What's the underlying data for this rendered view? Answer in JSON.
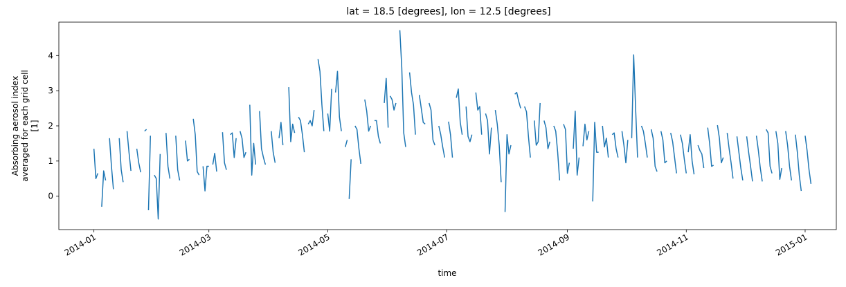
{
  "chart_data": {
    "type": "line",
    "title": "lat = 18.5 [degrees], lon = 12.5 [degrees]",
    "xlabel": "time",
    "ylabel_lines": [
      "Absorbing aerosol index",
      "averaged for each grid cell",
      "[1]"
    ],
    "color": "#1f77b4",
    "grid": false,
    "legend": "none",
    "xlim": [
      "2013-12-14",
      "2015-01-17"
    ],
    "ylim": [
      -0.95,
      4.95
    ],
    "x_ticks": [
      "2014-01-01",
      "2014-03-01",
      "2014-05-01",
      "2014-07-01",
      "2014-09-01",
      "2014-11-01",
      "2015-01-01"
    ],
    "x_tick_labels": [
      "2014-01",
      "2014-03",
      "2014-05",
      "2014-07",
      "2014-09",
      "2014-11",
      "2015-01"
    ],
    "y_ticks": [
      0,
      1,
      2,
      3,
      4
    ],
    "y_tick_labels": [
      "0",
      "1",
      "2",
      "3",
      "4"
    ],
    "segments": [
      [
        [
          "2014-01-01",
          1.35
        ],
        [
          "2014-01-02",
          0.5
        ],
        [
          "2014-01-03",
          0.65
        ]
      ],
      [
        [
          "2014-01-05",
          -0.3
        ],
        [
          "2014-01-06",
          0.72
        ],
        [
          "2014-01-07",
          0.45
        ]
      ],
      [
        [
          "2014-01-09",
          1.65
        ],
        [
          "2014-01-10",
          0.85
        ],
        [
          "2014-01-11",
          0.2
        ]
      ],
      [
        [
          "2014-01-14",
          1.65
        ],
        [
          "2014-01-15",
          0.75
        ],
        [
          "2014-01-16",
          0.4
        ]
      ],
      [
        [
          "2014-01-18",
          1.85
        ],
        [
          "2014-01-19",
          1.25
        ],
        [
          "2014-01-20",
          0.72
        ]
      ],
      [
        [
          "2014-01-23",
          1.35
        ],
        [
          "2014-01-24",
          0.95
        ],
        [
          "2014-01-25",
          0.68
        ]
      ],
      [
        [
          "2014-01-27",
          1.85
        ],
        [
          "2014-01-28",
          1.9
        ]
      ],
      [
        [
          "2014-01-29",
          -0.4
        ],
        [
          "2014-01-30",
          1.72
        ]
      ],
      [
        [
          "2014-02-01",
          0.6
        ],
        [
          "2014-02-02",
          0.5
        ],
        [
          "2014-02-03",
          -0.65
        ],
        [
          "2014-02-04",
          1.2
        ]
      ],
      [
        [
          "2014-02-07",
          1.8
        ],
        [
          "2014-02-08",
          0.85
        ],
        [
          "2014-02-09",
          0.5
        ]
      ],
      [
        [
          "2014-02-12",
          1.72
        ],
        [
          "2014-02-13",
          0.75
        ],
        [
          "2014-02-14",
          0.45
        ]
      ],
      [
        [
          "2014-02-17",
          1.58
        ],
        [
          "2014-02-18",
          1.0
        ],
        [
          "2014-02-19",
          1.05
        ]
      ],
      [
        [
          "2014-02-21",
          2.2
        ],
        [
          "2014-02-22",
          1.75
        ],
        [
          "2014-02-23",
          0.7
        ],
        [
          "2014-02-24",
          0.6
        ]
      ],
      [
        [
          "2014-02-26",
          0.85
        ],
        [
          "2014-02-27",
          0.15
        ],
        [
          "2014-02-28",
          0.85
        ],
        [
          "2014-03-01",
          0.85
        ]
      ],
      [
        [
          "2014-03-03",
          0.9
        ],
        [
          "2014-03-04",
          1.22
        ],
        [
          "2014-03-05",
          0.7
        ]
      ],
      [
        [
          "2014-03-08",
          1.82
        ],
        [
          "2014-03-09",
          0.95
        ],
        [
          "2014-03-10",
          0.75
        ]
      ],
      [
        [
          "2014-03-12",
          1.75
        ],
        [
          "2014-03-13",
          1.8
        ],
        [
          "2014-03-14",
          1.1
        ],
        [
          "2014-03-15",
          1.65
        ]
      ],
      [
        [
          "2014-03-17",
          1.85
        ],
        [
          "2014-03-18",
          1.65
        ],
        [
          "2014-03-19",
          1.1
        ],
        [
          "2014-03-20",
          1.25
        ]
      ],
      [
        [
          "2014-03-22",
          2.6
        ],
        [
          "2014-03-23",
          0.6
        ],
        [
          "2014-03-24",
          1.5
        ],
        [
          "2014-03-25",
          0.9
        ]
      ],
      [
        [
          "2014-03-27",
          2.42
        ],
        [
          "2014-03-28",
          1.35
        ],
        [
          "2014-03-29",
          1.1
        ],
        [
          "2014-03-30",
          0.9
        ]
      ],
      [
        [
          "2014-04-02",
          1.85
        ],
        [
          "2014-04-03",
          1.25
        ],
        [
          "2014-04-04",
          0.95
        ]
      ],
      [
        [
          "2014-04-06",
          1.65
        ],
        [
          "2014-04-07",
          2.1
        ],
        [
          "2014-04-08",
          1.45
        ]
      ],
      [
        [
          "2014-04-11",
          3.1
        ],
        [
          "2014-04-12",
          1.55
        ],
        [
          "2014-04-13",
          2.05
        ],
        [
          "2014-04-14",
          1.8
        ]
      ],
      [
        [
          "2014-04-16",
          2.25
        ],
        [
          "2014-04-17",
          2.15
        ],
        [
          "2014-04-18",
          1.75
        ],
        [
          "2014-04-19",
          1.25
        ]
      ],
      [
        [
          "2014-04-21",
          2.05
        ],
        [
          "2014-04-22",
          2.15
        ],
        [
          "2014-04-23",
          2.0
        ],
        [
          "2014-04-24",
          2.45
        ]
      ],
      [
        [
          "2014-04-26",
          3.9
        ],
        [
          "2014-04-27",
          3.55
        ],
        [
          "2014-04-28",
          2.6
        ],
        [
          "2014-04-29",
          1.85
        ]
      ],
      [
        [
          "2014-05-01",
          2.35
        ],
        [
          "2014-05-02",
          1.85
        ],
        [
          "2014-05-03",
          3.05
        ]
      ],
      [
        [
          "2014-05-05",
          2.95
        ],
        [
          "2014-05-06",
          3.55
        ],
        [
          "2014-05-07",
          2.25
        ],
        [
          "2014-05-08",
          1.85
        ]
      ],
      [
        [
          "2014-05-10",
          1.4
        ],
        [
          "2014-05-11",
          1.6
        ]
      ],
      [
        [
          "2014-05-12",
          -0.08
        ],
        [
          "2014-05-13",
          1.05
        ]
      ],
      [
        [
          "2014-05-15",
          2.0
        ],
        [
          "2014-05-16",
          1.9
        ],
        [
          "2014-05-17",
          1.35
        ],
        [
          "2014-05-18",
          0.92
        ]
      ],
      [
        [
          "2014-05-20",
          2.75
        ],
        [
          "2014-05-21",
          2.42
        ],
        [
          "2014-05-22",
          1.85
        ],
        [
          "2014-05-23",
          2.0
        ]
      ],
      [
        [
          "2014-05-25",
          2.15
        ],
        [
          "2014-05-26",
          2.15
        ],
        [
          "2014-05-27",
          1.7
        ],
        [
          "2014-05-28",
          1.5
        ]
      ],
      [
        [
          "2014-05-30",
          2.65
        ],
        [
          "2014-05-31",
          3.35
        ],
        [
          "2014-06-01",
          1.95
        ]
      ],
      [
        [
          "2014-06-02",
          2.85
        ],
        [
          "2014-06-03",
          2.75
        ],
        [
          "2014-06-04",
          2.45
        ],
        [
          "2014-06-05",
          2.65
        ]
      ],
      [
        [
          "2014-06-07",
          4.72
        ],
        [
          "2014-06-08",
          3.65
        ],
        [
          "2014-06-09",
          1.8
        ],
        [
          "2014-06-10",
          1.4
        ]
      ],
      [
        [
          "2014-06-12",
          3.52
        ],
        [
          "2014-06-13",
          2.95
        ],
        [
          "2014-06-14",
          2.6
        ],
        [
          "2014-06-15",
          1.75
        ]
      ],
      [
        [
          "2014-06-17",
          2.88
        ],
        [
          "2014-06-18",
          2.5
        ],
        [
          "2014-06-19",
          2.1
        ],
        [
          "2014-06-20",
          2.05
        ]
      ],
      [
        [
          "2014-06-22",
          2.65
        ],
        [
          "2014-06-23",
          2.45
        ],
        [
          "2014-06-24",
          1.6
        ],
        [
          "2014-06-25",
          1.45
        ]
      ],
      [
        [
          "2014-06-27",
          2.0
        ],
        [
          "2014-06-28",
          1.75
        ],
        [
          "2014-06-29",
          1.4
        ],
        [
          "2014-06-30",
          1.1
        ]
      ],
      [
        [
          "2014-07-02",
          2.12
        ],
        [
          "2014-07-03",
          1.75
        ],
        [
          "2014-07-04",
          1.1
        ]
      ],
      [
        [
          "2014-07-06",
          2.8
        ],
        [
          "2014-07-07",
          3.05
        ],
        [
          "2014-07-08",
          2.1
        ],
        [
          "2014-07-09",
          1.75
        ]
      ],
      [
        [
          "2014-07-11",
          2.55
        ],
        [
          "2014-07-12",
          1.7
        ],
        [
          "2014-07-13",
          1.55
        ],
        [
          "2014-07-14",
          1.75
        ]
      ],
      [
        [
          "2014-07-16",
          2.95
        ],
        [
          "2014-07-17",
          2.45
        ],
        [
          "2014-07-18",
          2.55
        ],
        [
          "2014-07-19",
          1.75
        ]
      ],
      [
        [
          "2014-07-21",
          2.35
        ],
        [
          "2014-07-22",
          2.15
        ],
        [
          "2014-07-23",
          1.2
        ],
        [
          "2014-07-24",
          1.95
        ]
      ],
      [
        [
          "2014-07-26",
          2.45
        ],
        [
          "2014-07-27",
          2.05
        ],
        [
          "2014-07-28",
          1.45
        ],
        [
          "2014-07-29",
          0.4
        ]
      ],
      [
        [
          "2014-07-31",
          -0.45
        ],
        [
          "2014-08-01",
          1.75
        ],
        [
          "2014-08-02",
          1.2
        ],
        [
          "2014-08-03",
          1.45
        ]
      ],
      [
        [
          "2014-08-05",
          2.9
        ],
        [
          "2014-08-06",
          2.95
        ],
        [
          "2014-08-07",
          2.7
        ],
        [
          "2014-08-08",
          2.5
        ]
      ],
      [
        [
          "2014-08-10",
          2.55
        ],
        [
          "2014-08-11",
          2.4
        ],
        [
          "2014-08-12",
          1.7
        ],
        [
          "2014-08-13",
          1.1
        ]
      ],
      [
        [
          "2014-08-15",
          2.15
        ],
        [
          "2014-08-16",
          1.45
        ],
        [
          "2014-08-17",
          1.55
        ],
        [
          "2014-08-18",
          2.65
        ]
      ],
      [
        [
          "2014-08-20",
          2.15
        ],
        [
          "2014-08-21",
          1.95
        ],
        [
          "2014-08-22",
          1.35
        ],
        [
          "2014-08-23",
          1.55
        ]
      ],
      [
        [
          "2014-08-25",
          2.0
        ],
        [
          "2014-08-26",
          1.85
        ],
        [
          "2014-08-27",
          1.25
        ],
        [
          "2014-08-28",
          0.45
        ]
      ],
      [
        [
          "2014-08-30",
          2.05
        ],
        [
          "2014-08-31",
          1.9
        ],
        [
          "2014-09-01",
          0.65
        ],
        [
          "2014-09-02",
          0.95
        ]
      ],
      [
        [
          "2014-09-04",
          1.35
        ],
        [
          "2014-09-05",
          2.42
        ],
        [
          "2014-09-06",
          0.6
        ],
        [
          "2014-09-07",
          1.1
        ]
      ],
      [
        [
          "2014-09-09",
          1.42
        ],
        [
          "2014-09-10",
          2.05
        ],
        [
          "2014-09-11",
          1.6
        ],
        [
          "2014-09-12",
          1.85
        ]
      ],
      [
        [
          "2014-09-14",
          -0.15
        ],
        [
          "2014-09-15",
          2.1
        ],
        [
          "2014-09-16",
          1.25
        ],
        [
          "2014-09-17",
          1.25
        ]
      ],
      [
        [
          "2014-09-19",
          2.0
        ],
        [
          "2014-09-20",
          1.4
        ],
        [
          "2014-09-21",
          1.65
        ],
        [
          "2014-09-22",
          1.1
        ]
      ],
      [
        [
          "2014-09-24",
          1.75
        ],
        [
          "2014-09-25",
          1.8
        ],
        [
          "2014-09-26",
          1.35
        ],
        [
          "2014-09-27",
          1.1
        ]
      ],
      [
        [
          "2014-09-29",
          1.85
        ],
        [
          "2014-09-30",
          1.45
        ],
        [
          "2014-10-01",
          0.95
        ],
        [
          "2014-10-02",
          1.6
        ]
      ],
      [
        [
          "2014-10-04",
          1.65
        ],
        [
          "2014-10-05",
          4.02
        ],
        [
          "2014-10-06",
          2.5
        ],
        [
          "2014-10-07",
          1.1
        ]
      ],
      [
        [
          "2014-10-09",
          2.0
        ],
        [
          "2014-10-10",
          1.85
        ],
        [
          "2014-10-11",
          1.5
        ],
        [
          "2014-10-12",
          1.1
        ]
      ],
      [
        [
          "2014-10-14",
          1.9
        ],
        [
          "2014-10-15",
          1.65
        ],
        [
          "2014-10-16",
          0.85
        ],
        [
          "2014-10-17",
          0.7
        ]
      ],
      [
        [
          "2014-10-19",
          1.85
        ],
        [
          "2014-10-20",
          1.6
        ],
        [
          "2014-10-21",
          0.95
        ],
        [
          "2014-10-22",
          1.0
        ]
      ],
      [
        [
          "2014-10-24",
          1.8
        ],
        [
          "2014-10-25",
          1.55
        ],
        [
          "2014-10-26",
          1.1
        ],
        [
          "2014-10-27",
          0.65
        ]
      ],
      [
        [
          "2014-10-29",
          1.75
        ],
        [
          "2014-10-30",
          1.5
        ],
        [
          "2014-10-31",
          1.05
        ],
        [
          "2014-11-01",
          0.65
        ]
      ],
      [
        [
          "2014-11-02",
          1.25
        ],
        [
          "2014-11-03",
          1.75
        ],
        [
          "2014-11-04",
          1.0
        ],
        [
          "2014-11-05",
          0.62
        ]
      ],
      [
        [
          "2014-11-07",
          1.45
        ],
        [
          "2014-11-08",
          1.3
        ],
        [
          "2014-11-09",
          1.2
        ],
        [
          "2014-11-10",
          0.8
        ]
      ],
      [
        [
          "2014-11-12",
          1.95
        ],
        [
          "2014-11-13",
          1.5
        ],
        [
          "2014-11-14",
          0.85
        ],
        [
          "2014-11-15",
          0.88
        ]
      ],
      [
        [
          "2014-11-17",
          2.02
        ],
        [
          "2014-11-18",
          1.65
        ],
        [
          "2014-11-19",
          0.95
        ],
        [
          "2014-11-20",
          1.1
        ]
      ],
      [
        [
          "2014-11-22",
          1.8
        ],
        [
          "2014-11-23",
          1.35
        ],
        [
          "2014-11-24",
          0.95
        ],
        [
          "2014-11-25",
          0.5
        ]
      ],
      [
        [
          "2014-11-27",
          1.7
        ],
        [
          "2014-11-28",
          1.25
        ],
        [
          "2014-11-29",
          0.8
        ],
        [
          "2014-11-30",
          0.45
        ]
      ],
      [
        [
          "2014-12-02",
          1.7
        ],
        [
          "2014-12-03",
          1.25
        ],
        [
          "2014-12-04",
          0.85
        ],
        [
          "2014-12-05",
          0.42
        ]
      ],
      [
        [
          "2014-12-07",
          1.72
        ],
        [
          "2014-12-08",
          1.3
        ],
        [
          "2014-12-09",
          0.8
        ],
        [
          "2014-12-10",
          0.42
        ]
      ],
      [
        [
          "2014-12-12",
          1.9
        ],
        [
          "2014-12-13",
          1.8
        ],
        [
          "2014-12-14",
          0.85
        ],
        [
          "2014-12-15",
          0.65
        ]
      ],
      [
        [
          "2014-12-17",
          1.85
        ],
        [
          "2014-12-18",
          1.5
        ],
        [
          "2014-12-19",
          0.48
        ],
        [
          "2014-12-20",
          0.8
        ]
      ],
      [
        [
          "2014-12-22",
          1.85
        ],
        [
          "2014-12-23",
          1.45
        ],
        [
          "2014-12-24",
          0.85
        ],
        [
          "2014-12-25",
          0.45
        ]
      ],
      [
        [
          "2014-12-27",
          1.75
        ],
        [
          "2014-12-28",
          1.25
        ],
        [
          "2014-12-29",
          0.6
        ],
        [
          "2014-12-30",
          0.15
        ]
      ],
      [
        [
          "2015-01-01",
          1.72
        ],
        [
          "2015-01-02",
          1.3
        ],
        [
          "2015-01-03",
          0.75
        ],
        [
          "2015-01-04",
          0.35
        ]
      ]
    ]
  }
}
